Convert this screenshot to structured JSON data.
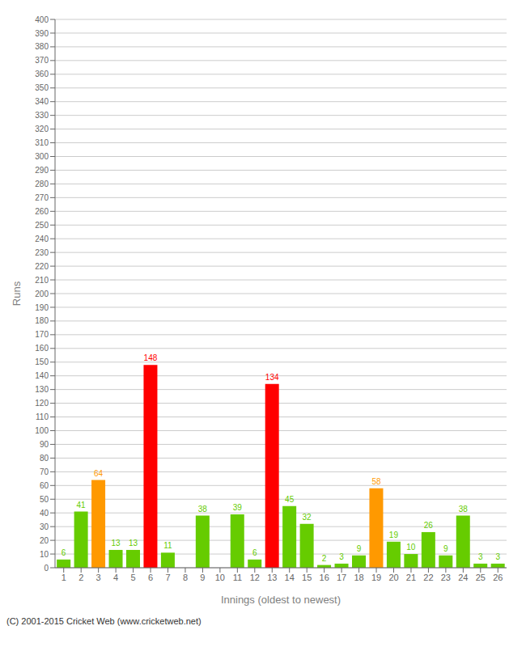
{
  "chart_data": {
    "type": "bar",
    "categories": [
      "1",
      "2",
      "3",
      "4",
      "5",
      "6",
      "7",
      "8",
      "9",
      "10",
      "11",
      "12",
      "13",
      "14",
      "15",
      "16",
      "17",
      "18",
      "19",
      "20",
      "21",
      "22",
      "23",
      "24",
      "25",
      "26"
    ],
    "values": [
      6,
      41,
      64,
      13,
      13,
      148,
      11,
      0,
      38,
      0,
      39,
      6,
      134,
      45,
      32,
      2,
      3,
      9,
      58,
      19,
      10,
      26,
      9,
      38,
      3,
      3
    ],
    "colors": [
      "#66cc00",
      "#66cc00",
      "#ff9900",
      "#66cc00",
      "#66cc00",
      "#ff0000",
      "#66cc00",
      "#66cc00",
      "#66cc00",
      "#66cc00",
      "#66cc00",
      "#66cc00",
      "#ff0000",
      "#66cc00",
      "#66cc00",
      "#66cc00",
      "#66cc00",
      "#66cc00",
      "#ff9900",
      "#66cc00",
      "#66cc00",
      "#66cc00",
      "#66cc00",
      "#66cc00",
      "#66cc00",
      "#66cc00"
    ],
    "xlabel": "Innings (oldest to newest)",
    "ylabel": "Runs",
    "ylim": [
      0,
      400
    ],
    "yticks": [
      0,
      10,
      20,
      30,
      40,
      50,
      60,
      70,
      80,
      90,
      100,
      110,
      120,
      130,
      140,
      150,
      160,
      170,
      180,
      190,
      200,
      210,
      220,
      230,
      240,
      250,
      260,
      270,
      280,
      290,
      300,
      310,
      320,
      330,
      340,
      350,
      360,
      370,
      380,
      390,
      400
    ],
    "grid": true,
    "data_labels": true,
    "annotations": [
      "(C) 2001-2015 Cricket Web (www.cricketweb.net)"
    ]
  }
}
